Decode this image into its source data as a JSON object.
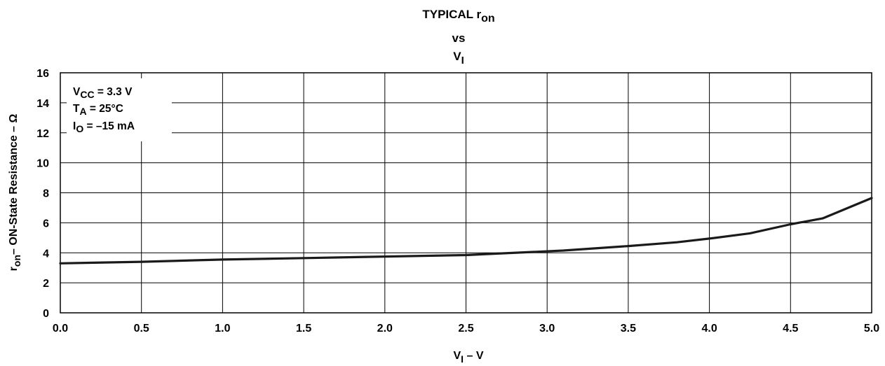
{
  "chart_data": {
    "type": "line",
    "title": {
      "line1_main": "TYPICAL r",
      "line1_sub": "on",
      "line2": "vs",
      "line3_main": "V",
      "line3_sub": "I"
    },
    "xlabel": {
      "main": "V",
      "sub": "I",
      "rest": " – V"
    },
    "ylabel": {
      "sub_first": "r",
      "sub": "on",
      "rest": "– ON-State Resistance – Ω"
    },
    "xlim": [
      0,
      5
    ],
    "ylim": [
      0,
      16
    ],
    "xticks": [
      "0.0",
      "0.5",
      "1.0",
      "1.5",
      "2.0",
      "2.5",
      "3.0",
      "3.5",
      "4.0",
      "4.5",
      "5.0"
    ],
    "yticks": [
      "0",
      "2",
      "4",
      "6",
      "8",
      "10",
      "12",
      "14",
      "16"
    ],
    "grid": true,
    "annotations": [
      {
        "main": "V",
        "sub": "CC",
        "rest": " = 3.3 V"
      },
      {
        "main": "T",
        "sub": "A",
        "rest": " = 25°C"
      },
      {
        "main": "I",
        "sub": "O",
        "rest": " = –15 mA"
      }
    ],
    "series": [
      {
        "x": [
          0.0,
          0.5,
          1.0,
          1.5,
          2.0,
          2.5,
          2.6,
          3.1,
          3.5,
          3.8,
          4.0,
          4.25,
          4.5,
          4.7,
          5.0
        ],
        "y": [
          3.3,
          3.4,
          3.55,
          3.65,
          3.75,
          3.85,
          3.9,
          4.15,
          4.45,
          4.7,
          4.95,
          5.3,
          5.9,
          6.3,
          7.65
        ]
      }
    ]
  }
}
